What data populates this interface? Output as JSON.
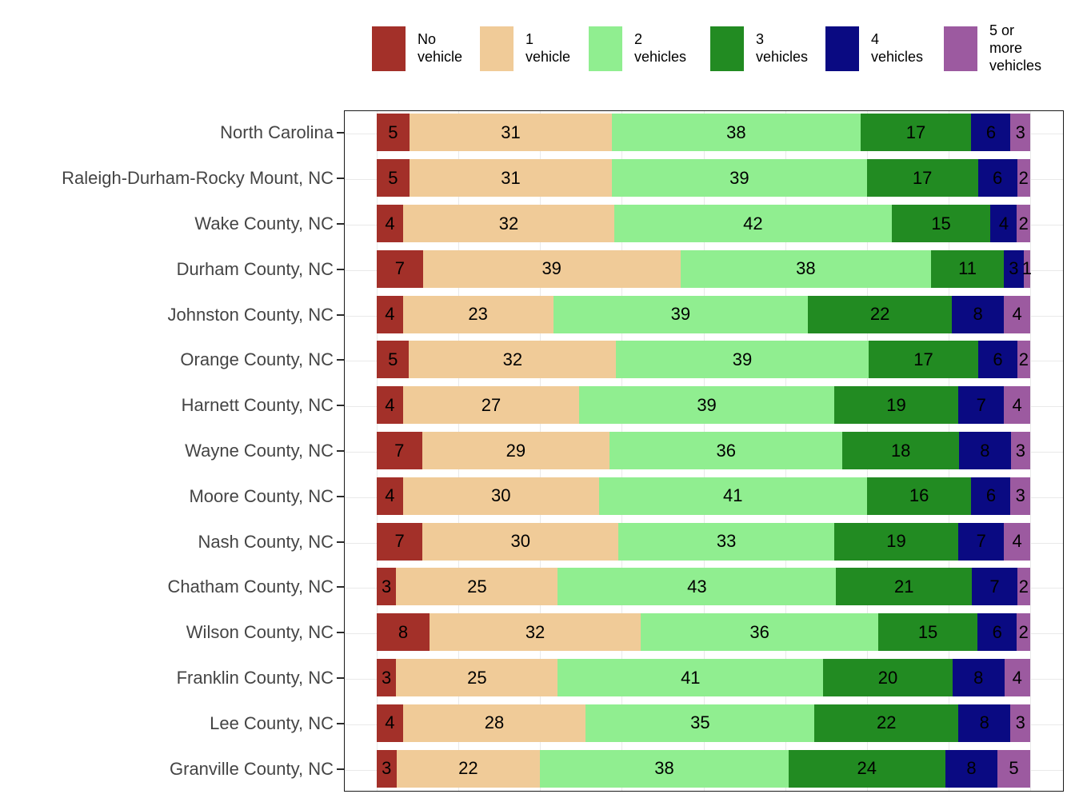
{
  "legend": {
    "position": "top",
    "items": [
      {
        "name": "no-vehicle",
        "label": "No\nvehicle",
        "color": "#A33029"
      },
      {
        "name": "one-vehicle",
        "label": "1\nvehicle",
        "color": "#F0CB98"
      },
      {
        "name": "two-vehicles",
        "label": "2\nvehicles",
        "color": "#90EE90"
      },
      {
        "name": "three-vehicles",
        "label": "3\nvehicles",
        "color": "#228B22"
      },
      {
        "name": "four-vehicles",
        "label": "4\nvehicles",
        "color": "#0A0A82"
      },
      {
        "name": "five-plus-vehicles",
        "label": "5 or\nmore\nvehicles",
        "color": "#9C5AA0"
      }
    ]
  },
  "chart_data": {
    "type": "bar",
    "orientation": "horizontal",
    "stacked": true,
    "units": "percent",
    "value_labels_shown": true,
    "grid": true,
    "legend_position": "top",
    "xlim": [
      0,
      100
    ],
    "categories": [
      "North Carolina",
      "Raleigh-Durham-Rocky Mount, NC",
      "Wake County, NC",
      "Durham County, NC",
      "Johnston County, NC",
      "Orange County, NC",
      "Harnett County, NC",
      "Wayne County, NC",
      "Moore County, NC",
      "Nash County, NC",
      "Chatham County, NC",
      "Wilson County, NC",
      "Franklin County, NC",
      "Lee County, NC",
      "Granville County, NC"
    ],
    "series": [
      {
        "name": "No vehicle",
        "color": "#A33029",
        "values": [
          5,
          5,
          4,
          7,
          4,
          5,
          4,
          7,
          4,
          7,
          3,
          8,
          3,
          4,
          3
        ]
      },
      {
        "name": "1 vehicle",
        "color": "#F0CB98",
        "values": [
          31,
          31,
          32,
          39,
          23,
          32,
          27,
          29,
          30,
          30,
          25,
          32,
          25,
          28,
          22
        ]
      },
      {
        "name": "2 vehicles",
        "color": "#90EE90",
        "values": [
          38,
          39,
          42,
          38,
          39,
          39,
          39,
          36,
          41,
          33,
          43,
          36,
          41,
          35,
          38
        ]
      },
      {
        "name": "3 vehicles",
        "color": "#228B22",
        "values": [
          17,
          17,
          15,
          11,
          22,
          17,
          19,
          18,
          16,
          19,
          21,
          15,
          20,
          22,
          24
        ]
      },
      {
        "name": "4 vehicles",
        "color": "#0A0A82",
        "values": [
          6,
          6,
          4,
          3,
          8,
          6,
          7,
          8,
          6,
          7,
          7,
          6,
          8,
          8,
          8
        ]
      },
      {
        "name": "5 or more vehicles",
        "color": "#9C5AA0",
        "values": [
          3,
          2,
          2,
          1,
          4,
          2,
          4,
          3,
          3,
          4,
          2,
          2,
          4,
          3,
          5
        ]
      }
    ]
  }
}
